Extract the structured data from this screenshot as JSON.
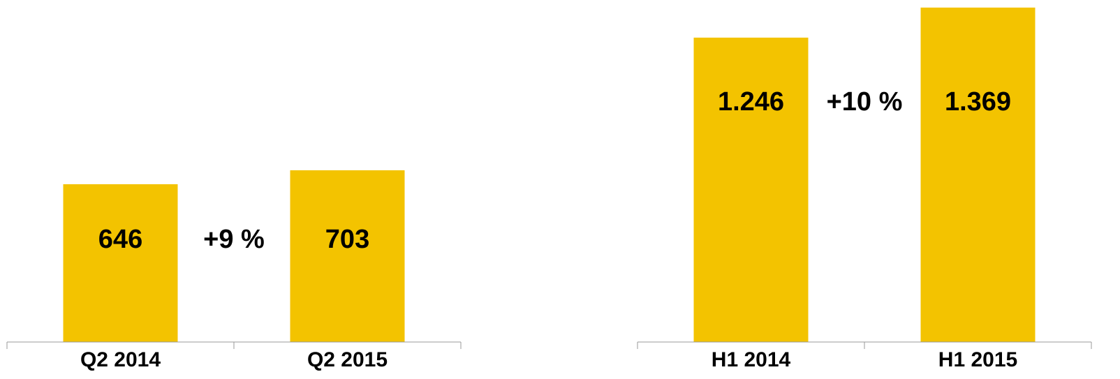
{
  "chart_data": [
    {
      "type": "bar",
      "categories": [
        "Q2 2014",
        "Q2 2015"
      ],
      "values": [
        646,
        703
      ],
      "annotation": "+9 %",
      "color": "#f3c300",
      "ylim": [
        0,
        1400
      ]
    },
    {
      "type": "bar",
      "categories": [
        "H1 2014",
        "H1 2015"
      ],
      "values": [
        1246,
        1369
      ],
      "value_labels": [
        "1.246",
        "1.369"
      ],
      "annotation": "+10 %",
      "color": "#f3c300",
      "ylim": [
        0,
        1400
      ]
    }
  ]
}
